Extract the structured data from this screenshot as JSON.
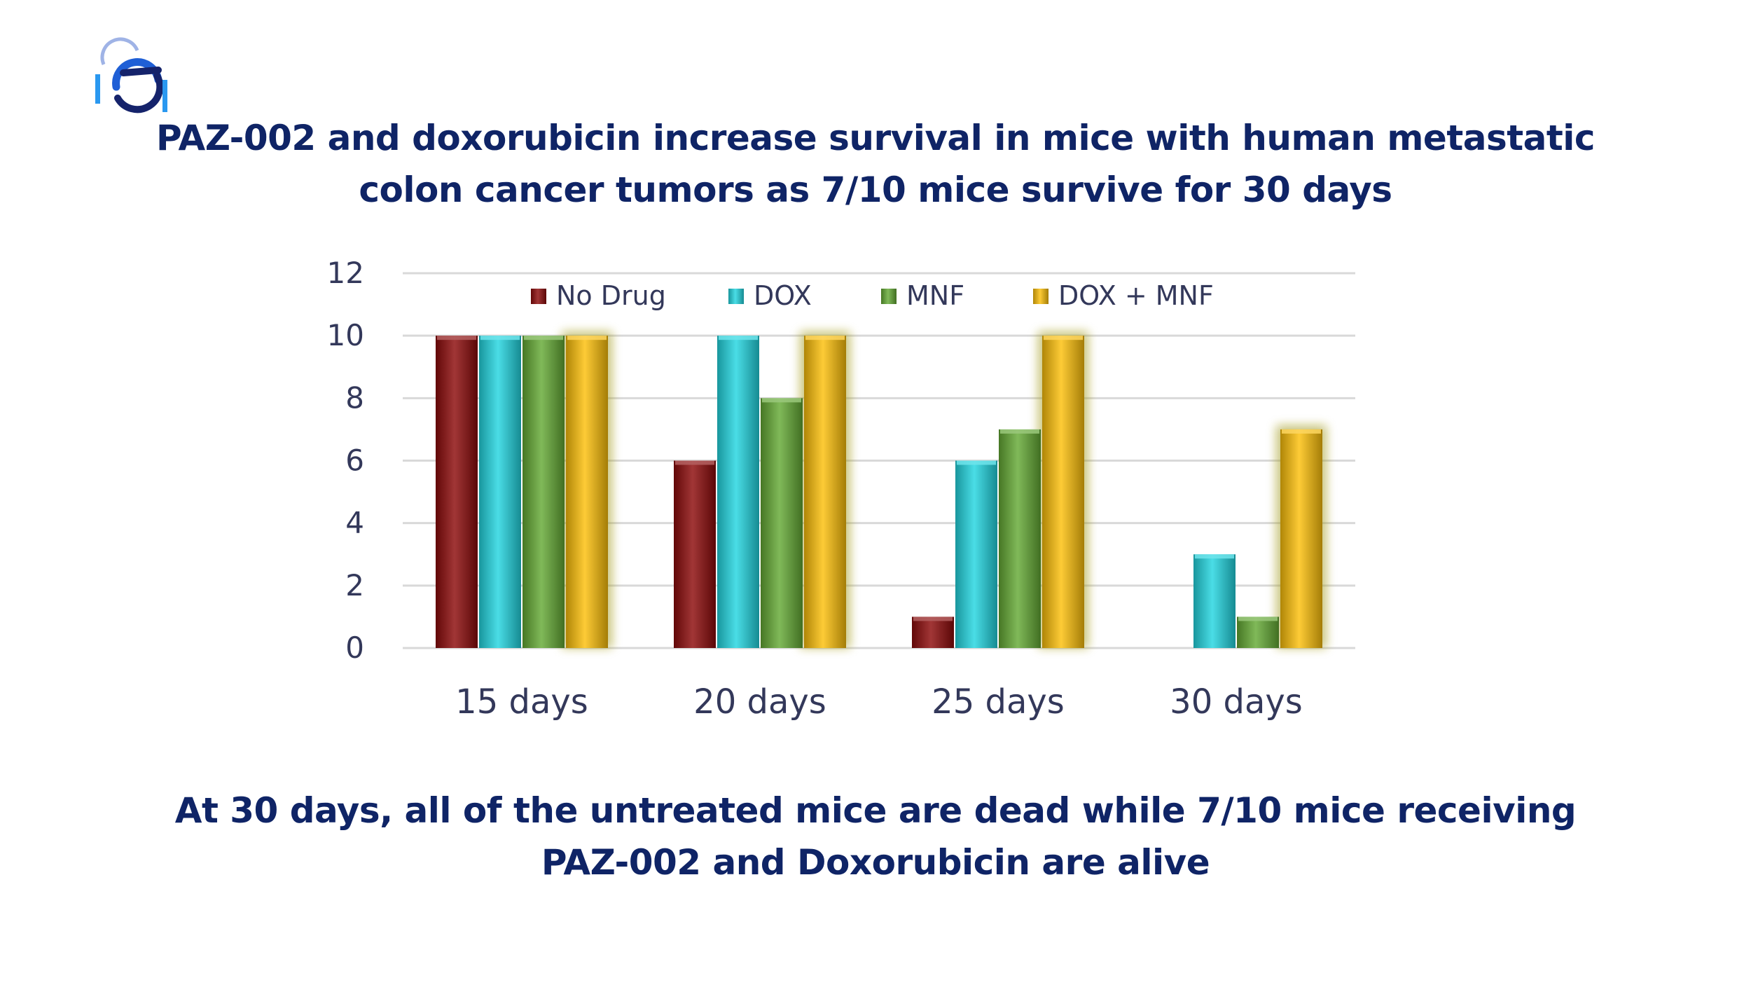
{
  "slide": {
    "title_lines": [
      "PAZ-002 and doxorubicin increase survival in mice with human metastatic",
      "colon cancer tumors as 7/10 mice survive for 30 days"
    ],
    "caption_lines": [
      "At 30 days, all of the untreated mice are dead while 7/10 mice receiving",
      "PAZ-002 and Doxorubicin are alive"
    ],
    "logo_icon": "company-logo-icon"
  },
  "chart_data": {
    "type": "bar",
    "categories": [
      "15 days",
      "20 days",
      "25 days",
      "30 days"
    ],
    "series": [
      {
        "name": "No Drug",
        "values": [
          10,
          6,
          1,
          0
        ],
        "color": "#8c0a0a"
      },
      {
        "name": "DOX",
        "values": [
          10,
          10,
          6,
          3
        ],
        "color": "#22d6e0"
      },
      {
        "name": "MNF",
        "values": [
          10,
          8,
          7,
          1
        ],
        "color": "#64aa34"
      },
      {
        "name": "DOX + MNF",
        "values": [
          10,
          10,
          10,
          7
        ],
        "color": "#fcc00a"
      }
    ],
    "title": "",
    "xlabel": "",
    "ylabel": "",
    "ylim": [
      0,
      12
    ],
    "yticks": [
      0,
      2,
      4,
      6,
      8,
      10,
      12
    ],
    "grid": true,
    "legend_position": "top"
  }
}
